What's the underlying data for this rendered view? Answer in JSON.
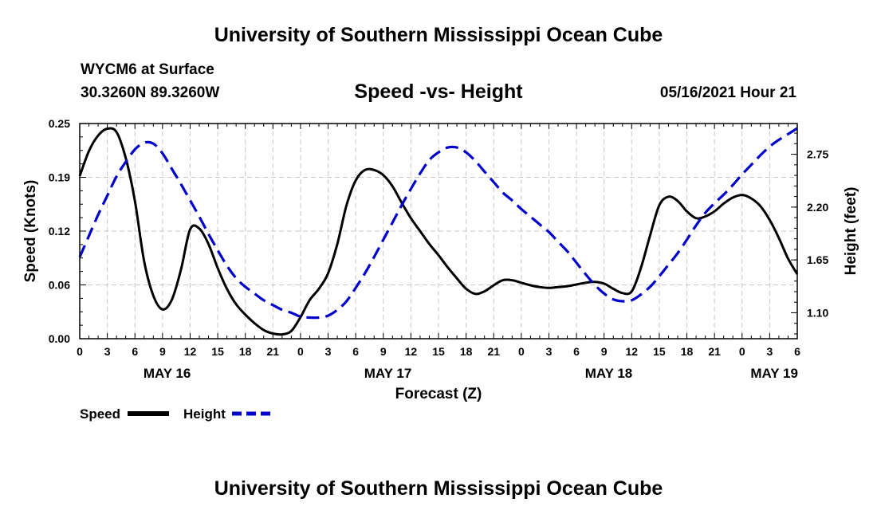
{
  "header": {
    "title_top": "University of Southern Mississippi Ocean Cube",
    "title_bottom": "University of Southern Mississippi Ocean Cube",
    "station": "WYCM6 at Surface",
    "coords": "30.3260N  89.3260W",
    "subtitle": "Speed -vs- Height",
    "datetime": "05/16/2021 Hour 21"
  },
  "chart_data": {
    "type": "line",
    "title": "Speed -vs- Height",
    "xlabel": "Forecast (Z)",
    "ylabel_left": "Speed (Knots)",
    "ylabel_right": "Height (feet)",
    "x_range_hours": [
      0,
      78
    ],
    "x_ticks": [
      "0",
      "3",
      "6",
      "9",
      "12",
      "15",
      "18",
      "21",
      "0",
      "3",
      "6",
      "9",
      "12",
      "15",
      "18",
      "21",
      "0",
      "3",
      "6",
      "9",
      "12",
      "15",
      "18",
      "21",
      "0",
      "3",
      "6"
    ],
    "date_labels": [
      {
        "label": "MAY 16",
        "hour": 9.5
      },
      {
        "label": "MAY 17",
        "hour": 33.5
      },
      {
        "label": "MAY 18",
        "hour": 57.5
      },
      {
        "label": "MAY 19",
        "hour": 75.5
      }
    ],
    "ylim_left": [
      0,
      0.25
    ],
    "left_ticks": [
      "0.00",
      "0.06",
      "0.12",
      "0.19",
      "0.25"
    ],
    "ylim_right": [
      0.83,
      3.07
    ],
    "right_ticks": [
      {
        "value": 1.1,
        "label": "1.10"
      },
      {
        "value": 1.65,
        "label": "1.65"
      },
      {
        "value": 2.2,
        "label": "2.20"
      },
      {
        "value": 2.75,
        "label": "2.75"
      }
    ],
    "grid": true,
    "legend_position": "bottom-left",
    "series": [
      {
        "name": "Speed",
        "axis": "left",
        "color": "#000000",
        "dash": "solid",
        "x": [
          0,
          1,
          2,
          3,
          4,
          5,
          6,
          7,
          8,
          9,
          10,
          11,
          12,
          13,
          14,
          15,
          16,
          17,
          18,
          19,
          20,
          21,
          22,
          23,
          24,
          25,
          26,
          27,
          28,
          29,
          30,
          31,
          32,
          33,
          34,
          35,
          36,
          37,
          38,
          39,
          40,
          41,
          42,
          43,
          44,
          45,
          46,
          47,
          48,
          49,
          50,
          51,
          52,
          53,
          54,
          55,
          56,
          57,
          58,
          59,
          60,
          61,
          62,
          63,
          64,
          65,
          66,
          67,
          68,
          69,
          70,
          71,
          72,
          73,
          74,
          75,
          76,
          77,
          78
        ],
        "values": [
          0.189,
          0.218,
          0.236,
          0.244,
          0.24,
          0.21,
          0.16,
          0.09,
          0.05,
          0.034,
          0.045,
          0.08,
          0.127,
          0.128,
          0.11,
          0.082,
          0.058,
          0.04,
          0.028,
          0.018,
          0.01,
          0.006,
          0.005,
          0.009,
          0.025,
          0.045,
          0.058,
          0.076,
          0.11,
          0.155,
          0.184,
          0.196,
          0.196,
          0.19,
          0.177,
          0.158,
          0.14,
          0.125,
          0.11,
          0.097,
          0.083,
          0.07,
          0.058,
          0.052,
          0.055,
          0.062,
          0.068,
          0.068,
          0.065,
          0.062,
          0.06,
          0.059,
          0.06,
          0.061,
          0.063,
          0.065,
          0.066,
          0.064,
          0.058,
          0.053,
          0.055,
          0.082,
          0.12,
          0.155,
          0.165,
          0.16,
          0.148,
          0.14,
          0.142,
          0.148,
          0.157,
          0.164,
          0.167,
          0.163,
          0.154,
          0.138,
          0.117,
          0.093,
          0.075
        ]
      },
      {
        "name": "Height",
        "axis": "right",
        "color": "#0000cc",
        "dash": "dashed",
        "x": [
          0,
          1,
          2,
          3,
          4,
          5,
          6,
          7,
          8,
          9,
          10,
          11,
          12,
          13,
          14,
          15,
          16,
          17,
          18,
          19,
          20,
          21,
          22,
          23,
          24,
          25,
          26,
          27,
          28,
          29,
          30,
          31,
          32,
          33,
          34,
          35,
          36,
          37,
          38,
          39,
          40,
          41,
          42,
          43,
          44,
          45,
          46,
          47,
          48,
          49,
          50,
          51,
          52,
          53,
          54,
          55,
          56,
          57,
          58,
          59,
          60,
          61,
          62,
          63,
          64,
          65,
          66,
          67,
          68,
          69,
          70,
          71,
          72,
          73,
          74,
          75,
          76,
          77,
          78
        ],
        "values": [
          1.68,
          1.9,
          2.12,
          2.32,
          2.52,
          2.67,
          2.8,
          2.87,
          2.86,
          2.76,
          2.6,
          2.44,
          2.27,
          2.1,
          1.92,
          1.75,
          1.59,
          1.46,
          1.37,
          1.3,
          1.23,
          1.18,
          1.13,
          1.1,
          1.06,
          1.05,
          1.05,
          1.07,
          1.13,
          1.22,
          1.36,
          1.51,
          1.68,
          1.86,
          2.04,
          2.22,
          2.39,
          2.55,
          2.69,
          2.77,
          2.82,
          2.82,
          2.77,
          2.68,
          2.57,
          2.46,
          2.35,
          2.27,
          2.18,
          2.1,
          2.02,
          1.94,
          1.84,
          1.74,
          1.62,
          1.5,
          1.39,
          1.3,
          1.24,
          1.22,
          1.23,
          1.29,
          1.37,
          1.48,
          1.6,
          1.72,
          1.86,
          2.01,
          2.14,
          2.24,
          2.33,
          2.43,
          2.54,
          2.64,
          2.74,
          2.83,
          2.9,
          2.96,
          3.02
        ]
      }
    ]
  }
}
